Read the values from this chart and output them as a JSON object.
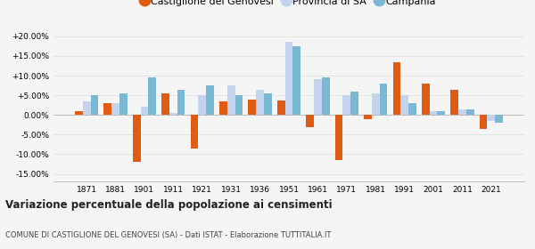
{
  "years": [
    1871,
    1881,
    1901,
    1911,
    1921,
    1931,
    1936,
    1951,
    1961,
    1971,
    1981,
    1991,
    2001,
    2011,
    2021
  ],
  "castiglione": [
    1.0,
    3.0,
    -12.0,
    5.5,
    -8.5,
    3.5,
    3.8,
    3.7,
    -3.0,
    -11.5,
    -1.0,
    13.5,
    8.0,
    6.5,
    -3.5
  ],
  "provincia_sa": [
    3.5,
    3.0,
    2.0,
    0.5,
    5.0,
    7.5,
    6.5,
    18.5,
    9.0,
    5.0,
    5.5,
    5.0,
    1.0,
    1.5,
    -1.5
  ],
  "campania": [
    5.0,
    5.5,
    9.5,
    6.5,
    7.5,
    5.0,
    5.5,
    17.5,
    9.5,
    6.0,
    8.0,
    3.0,
    1.0,
    1.5,
    -2.0
  ],
  "color_castiglione": "#e05c14",
  "color_provincia": "#c5d4ee",
  "color_campania": "#7ab8d4",
  "title": "Variazione percentuale della popolazione ai censimenti",
  "subtitle": "COMUNE DI CASTIGLIONE DEL GENOVESI (SA) - Dati ISTAT - Elaborazione TUTTITALIA.IT",
  "legend_labels": [
    "Castiglione del Genovesi",
    "Provincia di SA",
    "Campania"
  ],
  "ylim": [
    -17,
    21
  ],
  "yticks": [
    -15,
    -10,
    -5,
    0,
    5,
    10,
    15,
    20
  ],
  "background_color": "#f5f5f5",
  "grid_color": "#dddddd"
}
